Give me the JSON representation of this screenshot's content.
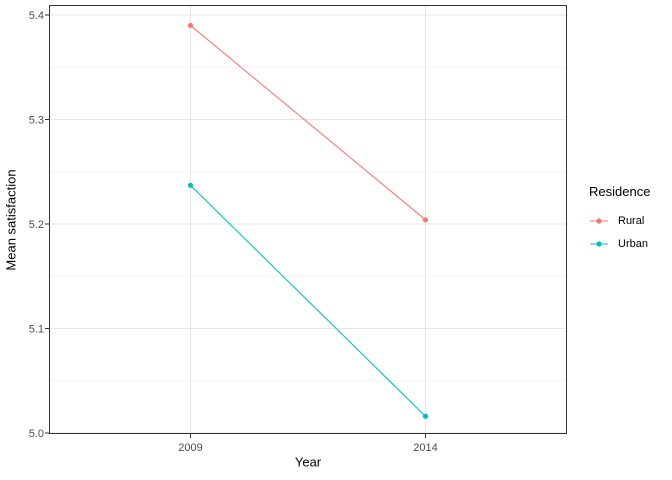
{
  "chart_data": {
    "type": "line",
    "xlabel": "Year",
    "ylabel": "Mean satisfaction",
    "categories": [
      "2009",
      "2014"
    ],
    "series": [
      {
        "name": "Rural",
        "color": "#F8766D",
        "values": [
          5.39,
          5.204
        ]
      },
      {
        "name": "Urban",
        "color": "#00BFC4",
        "values": [
          5.237,
          5.016
        ]
      }
    ],
    "legend_title": "Residence",
    "legend_position": "right",
    "ylim": [
      5.0,
      5.4
    ],
    "yticks": [
      5.0,
      5.1,
      5.2,
      5.3,
      5.4
    ],
    "ytick_labels": [
      "5.0",
      "5.1",
      "5.2",
      "5.3",
      "5.4"
    ],
    "minor_yticks": [
      5.05,
      5.15,
      5.25,
      5.35
    ],
    "grid": true,
    "colors": {
      "panel_border": "#333333",
      "tick_mark": "#333333",
      "grid_major": "#E6E6E6",
      "grid_minor": "#F3F3F3",
      "tick_label": "#4D4D4D",
      "axis_title": "#000000",
      "background": "#FFFFFF"
    }
  }
}
